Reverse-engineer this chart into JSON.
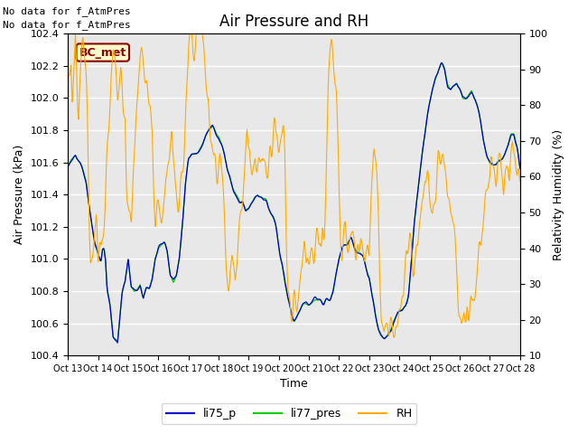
{
  "title": "Air Pressure and RH",
  "xlabel": "Time",
  "ylabel_left": "Air Pressure (kPa)",
  "ylabel_right": "Relativity Humidity (%)",
  "ylim_left": [
    100.4,
    102.4
  ],
  "ylim_right": [
    10,
    100
  ],
  "xtick_labels": [
    "Oct 13",
    "Oct 14",
    "Oct 15",
    "Oct 16",
    "Oct 17",
    "Oct 18",
    "Oct 19",
    "Oct 20",
    "Oct 21",
    "Oct 22",
    "Oct 23",
    "Oct 24",
    "Oct 25",
    "Oct 26",
    "Oct 27",
    "Oct 28"
  ],
  "note_line1": "No data for f_AtmPres",
  "note_line2": "No data for f_AtmPres",
  "bc_met_label": "BC_met",
  "color_li75": "#0000cc",
  "color_li77": "#00cc00",
  "color_rh": "#ffaa00",
  "legend_labels": [
    "li75_p",
    "li77_pres",
    "RH"
  ],
  "bg_color": "#e8e8e8",
  "grid_color": "#ffffff",
  "title_fontsize": 12,
  "axis_fontsize": 9,
  "tick_fontsize": 8,
  "note_fontsize": 8,
  "legend_fontsize": 9
}
